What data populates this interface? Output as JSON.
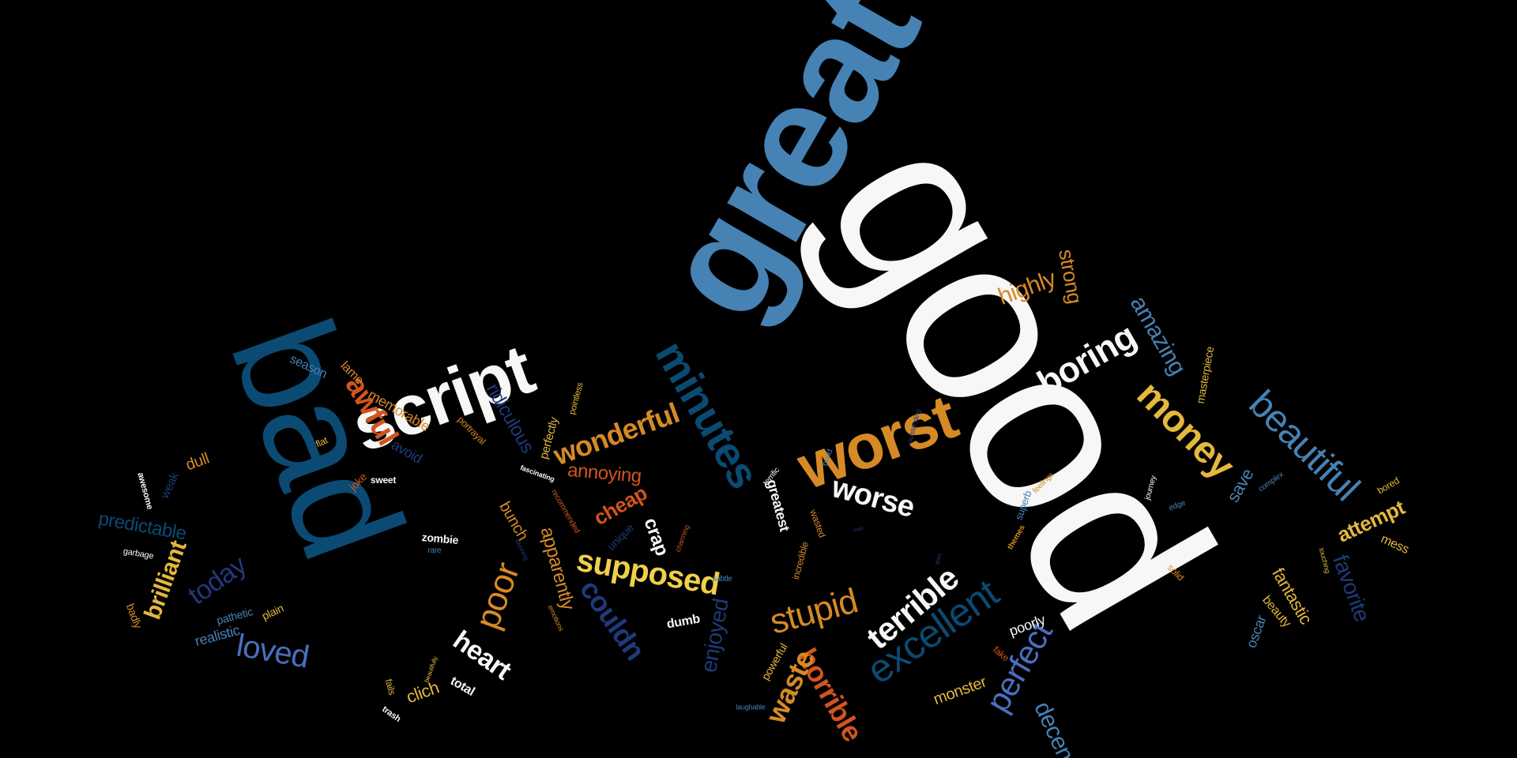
{
  "words": [
    {
      "text": "good",
      "color": "#F7F7F7"
    },
    {
      "text": "great",
      "color": "#4682B4"
    },
    {
      "text": "bad",
      "color": "#0B4A72"
    },
    {
      "text": "script",
      "color": "#F7F7F7"
    },
    {
      "text": "minutes",
      "color": "#0B4A72"
    },
    {
      "text": "worst",
      "color": "#D68A26"
    },
    {
      "text": "boring",
      "color": "#F7F7F7"
    },
    {
      "text": "money",
      "color": "#E3B83D"
    },
    {
      "text": "beautiful",
      "color": "#4682B4"
    },
    {
      "text": "awful",
      "color": "#D2541E"
    },
    {
      "text": "wonderful",
      "color": "#D68A26"
    },
    {
      "text": "excellent",
      "color": "#0B4A72"
    },
    {
      "text": "terrible",
      "color": "#F7F7F7"
    },
    {
      "text": "stupid",
      "color": "#D68A26"
    },
    {
      "text": "supposed",
      "color": "#F0D04A"
    },
    {
      "text": "perfect",
      "color": "#4A6FBF"
    },
    {
      "text": "horrible",
      "color": "#D2541E"
    },
    {
      "text": "poor",
      "color": "#D68A26"
    },
    {
      "text": "worse",
      "color": "#F7F7F7"
    },
    {
      "text": "loved",
      "color": "#4A6FBF"
    },
    {
      "text": "today",
      "color": "#1F3A7A"
    },
    {
      "text": "heart",
      "color": "#F7F7F7"
    },
    {
      "text": "waste",
      "color": "#D68A26"
    },
    {
      "text": "amazing",
      "color": "#4682B4"
    },
    {
      "text": "ridiculous",
      "color": "#1F3A7A"
    },
    {
      "text": "couldn",
      "color": "#1F3A7A"
    },
    {
      "text": "brilliant",
      "color": "#E3B83D"
    },
    {
      "text": "favorite",
      "color": "#1F3A7A"
    },
    {
      "text": "highly",
      "color": "#D68A26"
    },
    {
      "text": "strong",
      "color": "#D68A26"
    },
    {
      "text": "annoying",
      "color": "#D2541E"
    },
    {
      "text": "cheap",
      "color": "#D2541E"
    },
    {
      "text": "attempt",
      "color": "#E3B83D"
    },
    {
      "text": "decent",
      "color": "#4682B4"
    },
    {
      "text": "enjoyed",
      "color": "#1F3A7A"
    },
    {
      "text": "predictable",
      "color": "#0B4A72"
    },
    {
      "text": "apparently",
      "color": "#D68A26"
    },
    {
      "text": "save",
      "color": "#4682B4"
    },
    {
      "text": "crap",
      "color": "#F7F7F7"
    },
    {
      "text": "fantastic",
      "color": "#E3B83D"
    },
    {
      "text": "bunch",
      "color": "#D68A26"
    },
    {
      "text": "monster",
      "color": "#E3B83D"
    },
    {
      "text": "memorable",
      "color": "#D68A26"
    },
    {
      "text": "greatest",
      "color": "#F7F7F7"
    },
    {
      "text": "dull",
      "color": "#D68A26"
    },
    {
      "text": "realistic",
      "color": "#4682B4"
    },
    {
      "text": "clich",
      "color": "#E3B83D"
    },
    {
      "text": "poorly",
      "color": "#F7F7F7"
    },
    {
      "text": "oscar",
      "color": "#4682B4"
    },
    {
      "text": "avoid",
      "color": "#1F3A7A"
    },
    {
      "text": "lame",
      "color": "#D68A26"
    },
    {
      "text": "season",
      "color": "#4682B4"
    },
    {
      "text": "perfectly",
      "color": "#E3B83D"
    },
    {
      "text": "masterpiece",
      "color": "#E3B83D"
    },
    {
      "text": "weak",
      "color": "#1F3A7A"
    },
    {
      "text": "dumb",
      "color": "#F7F7F7"
    },
    {
      "text": "beauty",
      "color": "#E3B83D"
    },
    {
      "text": "powerful",
      "color": "#E3B83D"
    },
    {
      "text": "total",
      "color": "#F7F7F7"
    },
    {
      "text": "mess",
      "color": "#E3B83D"
    },
    {
      "text": "badly",
      "color": "#D68A26"
    },
    {
      "text": "pathetic",
      "color": "#4682B4"
    },
    {
      "text": "plain",
      "color": "#E3B83D"
    },
    {
      "text": "unique",
      "color": "#1F3A7A"
    },
    {
      "text": "zombie",
      "color": "#F7F7F7"
    },
    {
      "text": "portrayal",
      "color": "#D68A26"
    },
    {
      "text": "pointless",
      "color": "#E3B83D"
    },
    {
      "text": "joke",
      "color": "#D2541E"
    },
    {
      "text": "sweet",
      "color": "#F7F7F7"
    },
    {
      "text": "flat",
      "color": "#E3B83D"
    },
    {
      "text": "awesome",
      "color": "#F7F7F7"
    },
    {
      "text": "garbage",
      "color": "#F7F7F7"
    },
    {
      "text": "fails",
      "color": "#E3B83D"
    },
    {
      "text": "trash",
      "color": "#F7F7F7"
    },
    {
      "text": "recommended",
      "color": "#D2541E"
    },
    {
      "text": "fascinating",
      "color": "#F7F7F7"
    },
    {
      "text": "rare",
      "color": "#4682B4"
    },
    {
      "text": "stunning",
      "color": "#1F3A7A"
    },
    {
      "text": "emotions",
      "color": "#D68A26"
    },
    {
      "text": "charming",
      "color": "#D2541E"
    },
    {
      "text": "subtle",
      "color": "#4682B4"
    },
    {
      "text": "terrific",
      "color": "#F7F7F7"
    },
    {
      "text": "bond",
      "color": "#4682B4"
    },
    {
      "text": "wasted",
      "color": "#D68A26"
    },
    {
      "text": "incredible",
      "color": "#D68A26"
    },
    {
      "text": "laughable",
      "color": "#4682B4"
    },
    {
      "text": "fake",
      "color": "#D2541E"
    },
    {
      "text": "solid",
      "color": "#D68A26"
    },
    {
      "text": "themes",
      "color": "#D68A26"
    },
    {
      "text": "superb",
      "color": "#4682B4"
    },
    {
      "text": "feelings",
      "color": "#D68A26"
    },
    {
      "text": "journey",
      "color": "#F7F7F7"
    },
    {
      "text": "edge",
      "color": "#4682B4"
    },
    {
      "text": "complex",
      "color": "#4682B4"
    },
    {
      "text": "bored",
      "color": "#E3B83D"
    },
    {
      "text": "touching",
      "color": "#E3B83D"
    },
    {
      "text": "outstanding",
      "color": "#1F3A7A"
    },
    {
      "text": "beautifully",
      "color": "#E3B83D"
    },
    {
      "text": "cool",
      "color": "#1F3A7A"
    },
    {
      "text": "goes",
      "color": "#1F3A7A"
    }
  ]
}
